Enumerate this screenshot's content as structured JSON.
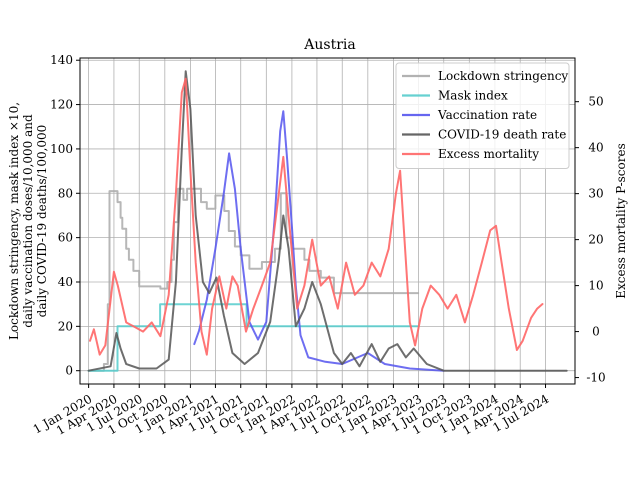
{
  "chart_data": {
    "type": "line",
    "title": "Austria",
    "ylabel_left": [
      "Lockdown stringency, mask index ×10,",
      "daily vaccination doses/10,000 and",
      "daily COVID-19 deaths/100,000"
    ],
    "ylabel_right": "Excess mortality P-scores",
    "x_type": "date",
    "xlim": [
      "2019-12-01",
      "2024-10-15"
    ],
    "ylim_left": [
      -6,
      141
    ],
    "ylim_right": [
      -11.4,
      59.5
    ],
    "x_ticks": [
      {
        "date": "2020-01-01",
        "label": "1 Jan 2020"
      },
      {
        "date": "2020-04-01",
        "label": "1 Apr 2020"
      },
      {
        "date": "2020-07-01",
        "label": "1 Jul 2020"
      },
      {
        "date": "2020-10-01",
        "label": "1 Oct 2020"
      },
      {
        "date": "2021-01-01",
        "label": "1 Jan 2021"
      },
      {
        "date": "2021-04-01",
        "label": "1 Apr 2021"
      },
      {
        "date": "2021-07-01",
        "label": "1 Jul 2021"
      },
      {
        "date": "2021-10-01",
        "label": "1 Oct 2021"
      },
      {
        "date": "2022-01-01",
        "label": "1 Jan 2022"
      },
      {
        "date": "2022-04-01",
        "label": "1 Apr 2022"
      },
      {
        "date": "2022-07-01",
        "label": "1 Jul 2022"
      },
      {
        "date": "2022-10-01",
        "label": "1 Oct 2022"
      },
      {
        "date": "2023-01-01",
        "label": "1 Jan 2023"
      },
      {
        "date": "2023-04-01",
        "label": "1 Apr 2023"
      },
      {
        "date": "2023-07-01",
        "label": "1 Jul 2023"
      },
      {
        "date": "2023-10-01",
        "label": "1 Oct 2023"
      },
      {
        "date": "2024-01-01",
        "label": "1 Jan 2024"
      },
      {
        "date": "2024-04-01",
        "label": "1 Apr 2024"
      },
      {
        "date": "2024-07-01",
        "label": "1 Jul 2024"
      }
    ],
    "y_ticks_left": [
      0,
      20,
      40,
      60,
      80,
      100,
      120,
      140
    ],
    "y_ticks_right": [
      -10,
      0,
      10,
      20,
      30,
      40,
      50
    ],
    "grid": true,
    "legend_position": "top-right",
    "series": [
      {
        "name": "Lockdown stringency",
        "axis": "left",
        "color": "#aaaaaa",
        "step": true,
        "points": [
          [
            "2020-01-01",
            0
          ],
          [
            "2020-02-25",
            3
          ],
          [
            "2020-03-10",
            30
          ],
          [
            "2020-03-16",
            81
          ],
          [
            "2020-04-14",
            76
          ],
          [
            "2020-04-25",
            69
          ],
          [
            "2020-05-01",
            64
          ],
          [
            "2020-05-15",
            55
          ],
          [
            "2020-05-25",
            50
          ],
          [
            "2020-06-10",
            45
          ],
          [
            "2020-07-01",
            38
          ],
          [
            "2020-09-15",
            37
          ],
          [
            "2020-10-10",
            40
          ],
          [
            "2020-10-25",
            50
          ],
          [
            "2020-11-03",
            67
          ],
          [
            "2020-11-17",
            82
          ],
          [
            "2020-12-07",
            77
          ],
          [
            "2020-12-20",
            82
          ],
          [
            "2021-01-01",
            82
          ],
          [
            "2021-02-08",
            76
          ],
          [
            "2021-03-01",
            73
          ],
          [
            "2021-04-01",
            79
          ],
          [
            "2021-05-03",
            72
          ],
          [
            "2021-05-19",
            63
          ],
          [
            "2021-06-10",
            56
          ],
          [
            "2021-07-01",
            52
          ],
          [
            "2021-08-01",
            46
          ],
          [
            "2021-09-15",
            49
          ],
          [
            "2021-11-01",
            55
          ],
          [
            "2021-11-22",
            80
          ],
          [
            "2021-12-12",
            60
          ],
          [
            "2022-01-01",
            55
          ],
          [
            "2022-02-15",
            50
          ],
          [
            "2022-03-05",
            45
          ],
          [
            "2022-04-15",
            42
          ],
          [
            "2022-06-01",
            35
          ],
          [
            "2023-03-31",
            35
          ]
        ]
      },
      {
        "name": "Mask index",
        "axis": "left",
        "color": "#55cccc",
        "step": true,
        "points": [
          [
            "2020-01-01",
            0
          ],
          [
            "2020-04-14",
            20
          ],
          [
            "2020-09-14",
            30
          ],
          [
            "2021-07-22",
            20
          ],
          [
            "2023-03-31",
            20
          ]
        ]
      },
      {
        "name": "Vaccination rate",
        "axis": "left",
        "color": "#5555ee",
        "points": [
          [
            "2021-01-15",
            12
          ],
          [
            "2021-02-01",
            18
          ],
          [
            "2021-03-01",
            32
          ],
          [
            "2021-04-01",
            55
          ],
          [
            "2021-05-01",
            80
          ],
          [
            "2021-05-20",
            98
          ],
          [
            "2021-06-10",
            82
          ],
          [
            "2021-07-01",
            55
          ],
          [
            "2021-08-01",
            22
          ],
          [
            "2021-09-01",
            14
          ],
          [
            "2021-10-01",
            22
          ],
          [
            "2021-11-01",
            70
          ],
          [
            "2021-11-20",
            108
          ],
          [
            "2021-12-01",
            117
          ],
          [
            "2021-12-15",
            95
          ],
          [
            "2022-01-01",
            65
          ],
          [
            "2022-01-15",
            38
          ],
          [
            "2022-02-01",
            16
          ],
          [
            "2022-03-01",
            6
          ],
          [
            "2022-05-01",
            4
          ],
          [
            "2022-07-01",
            3
          ],
          [
            "2022-10-01",
            8
          ],
          [
            "2022-12-01",
            3
          ],
          [
            "2023-03-01",
            1
          ],
          [
            "2023-06-30",
            0
          ]
        ]
      },
      {
        "name": "COVID-19 death rate",
        "axis": "left",
        "color": "#555555",
        "points": [
          [
            "2020-01-01",
            0
          ],
          [
            "2020-03-20",
            2
          ],
          [
            "2020-04-10",
            17
          ],
          [
            "2020-04-25",
            10
          ],
          [
            "2020-05-15",
            3
          ],
          [
            "2020-07-01",
            1
          ],
          [
            "2020-09-01",
            1
          ],
          [
            "2020-10-15",
            5
          ],
          [
            "2020-11-10",
            40
          ],
          [
            "2020-12-01",
            100
          ],
          [
            "2020-12-15",
            135
          ],
          [
            "2021-01-01",
            118
          ],
          [
            "2021-01-20",
            70
          ],
          [
            "2021-02-15",
            40
          ],
          [
            "2021-03-10",
            35
          ],
          [
            "2021-04-05",
            42
          ],
          [
            "2021-05-01",
            25
          ],
          [
            "2021-06-01",
            8
          ],
          [
            "2021-07-15",
            3
          ],
          [
            "2021-09-01",
            8
          ],
          [
            "2021-10-15",
            22
          ],
          [
            "2021-11-15",
            50
          ],
          [
            "2021-12-01",
            70
          ],
          [
            "2021-12-20",
            55
          ],
          [
            "2022-01-15",
            20
          ],
          [
            "2022-02-15",
            28
          ],
          [
            "2022-03-15",
            40
          ],
          [
            "2022-04-15",
            30
          ],
          [
            "2022-06-01",
            8
          ],
          [
            "2022-07-01",
            3
          ],
          [
            "2022-08-01",
            8
          ],
          [
            "2022-09-01",
            2
          ],
          [
            "2022-10-15",
            12
          ],
          [
            "2022-11-15",
            4
          ],
          [
            "2022-12-15",
            10
          ],
          [
            "2023-01-15",
            12
          ],
          [
            "2023-02-15",
            6
          ],
          [
            "2023-03-15",
            10
          ],
          [
            "2023-05-01",
            3
          ],
          [
            "2023-07-01",
            0
          ],
          [
            "2024-09-15",
            0
          ]
        ]
      },
      {
        "name": "Excess mortality",
        "axis": "right",
        "color": "#ff6666",
        "points": [
          [
            "2020-01-06",
            -2
          ],
          [
            "2020-01-20",
            0.5
          ],
          [
            "2020-02-10",
            -5
          ],
          [
            "2020-03-01",
            -3
          ],
          [
            "2020-04-01",
            13
          ],
          [
            "2020-04-15",
            10
          ],
          [
            "2020-05-15",
            2
          ],
          [
            "2020-06-15",
            1
          ],
          [
            "2020-07-15",
            0
          ],
          [
            "2020-08-15",
            2
          ],
          [
            "2020-09-15",
            -1
          ],
          [
            "2020-10-15",
            8
          ],
          [
            "2020-11-10",
            30
          ],
          [
            "2020-12-01",
            52
          ],
          [
            "2020-12-15",
            55
          ],
          [
            "2021-01-01",
            35
          ],
          [
            "2021-01-20",
            15
          ],
          [
            "2021-02-10",
            0
          ],
          [
            "2021-03-01",
            -5
          ],
          [
            "2021-03-20",
            5
          ],
          [
            "2021-04-15",
            12
          ],
          [
            "2021-05-10",
            5
          ],
          [
            "2021-06-01",
            12
          ],
          [
            "2021-06-20",
            10
          ],
          [
            "2021-07-20",
            0
          ],
          [
            "2021-08-15",
            5
          ],
          [
            "2021-09-15",
            10
          ],
          [
            "2021-10-15",
            15
          ],
          [
            "2021-11-15",
            30
          ],
          [
            "2021-12-01",
            38
          ],
          [
            "2021-12-20",
            25
          ],
          [
            "2022-01-20",
            5
          ],
          [
            "2022-02-15",
            10
          ],
          [
            "2022-03-15",
            20
          ],
          [
            "2022-04-15",
            10
          ],
          [
            "2022-05-15",
            12
          ],
          [
            "2022-06-15",
            5
          ],
          [
            "2022-07-15",
            15
          ],
          [
            "2022-08-15",
            8
          ],
          [
            "2022-09-15",
            10
          ],
          [
            "2022-10-15",
            15
          ],
          [
            "2022-11-15",
            12
          ],
          [
            "2022-12-15",
            18
          ],
          [
            "2023-01-10",
            30
          ],
          [
            "2023-01-25",
            35
          ],
          [
            "2023-02-10",
            20
          ],
          [
            "2023-03-01",
            2
          ],
          [
            "2023-03-20",
            -3
          ],
          [
            "2023-04-15",
            5
          ],
          [
            "2023-05-15",
            10
          ],
          [
            "2023-06-15",
            8
          ],
          [
            "2023-07-15",
            5
          ],
          [
            "2023-08-15",
            8
          ],
          [
            "2023-09-15",
            2
          ],
          [
            "2023-10-15",
            8
          ],
          [
            "2023-11-15",
            15
          ],
          [
            "2023-12-15",
            22
          ],
          [
            "2024-01-05",
            23
          ],
          [
            "2024-01-25",
            15
          ],
          [
            "2024-02-20",
            5
          ],
          [
            "2024-03-20",
            -4
          ],
          [
            "2024-04-10",
            -2
          ],
          [
            "2024-05-10",
            3
          ],
          [
            "2024-06-01",
            5
          ],
          [
            "2024-06-20",
            6
          ]
        ]
      }
    ]
  }
}
